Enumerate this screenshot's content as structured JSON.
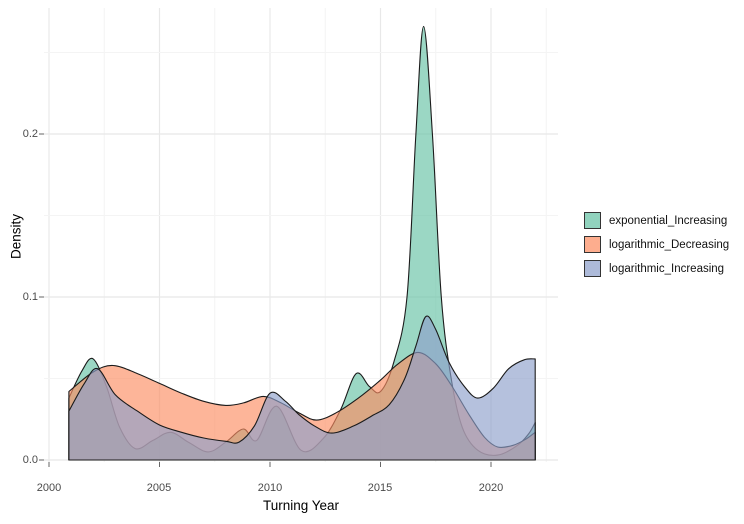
{
  "figure": {
    "background": "#ffffff"
  },
  "chart_data": {
    "type": "area",
    "subtype": "density",
    "title": "",
    "xlabel": "Turning Year",
    "ylabel": "Density",
    "x_ticks": [
      "2000",
      "2005",
      "2010",
      "2015",
      "2020"
    ],
    "y_ticks": [
      "0.0",
      "0.1",
      "0.2"
    ],
    "x_tick_values": [
      2000,
      2005,
      2010,
      2015,
      2020
    ],
    "y_tick_values": [
      0.0,
      0.1,
      0.2
    ],
    "xlim": [
      1999.8,
      2023.1
    ],
    "ylim": [
      0,
      0.28
    ],
    "grid": "major and minor gridlines, light gray on white",
    "legend_position": "right",
    "fill_alpha": 0.65,
    "stroke_color": "#1b1b1b",
    "major_grid_color": "#e8e8e8",
    "minor_grid_color": "#f4f4f4",
    "tick_color": "#666666",
    "series": [
      {
        "name": "exponential_Increasing",
        "color": "#66C2A5",
        "points": [
          [
            2000.9,
            0.038
          ],
          [
            2001.5,
            0.055
          ],
          [
            2002.0,
            0.062
          ],
          [
            2002.6,
            0.045
          ],
          [
            2003.2,
            0.02
          ],
          [
            2003.9,
            0.007
          ],
          [
            2004.7,
            0.012
          ],
          [
            2005.5,
            0.017
          ],
          [
            2006.3,
            0.011
          ],
          [
            2007.2,
            0.005
          ],
          [
            2008.0,
            0.011
          ],
          [
            2008.8,
            0.019
          ],
          [
            2009.4,
            0.012
          ],
          [
            2010.3,
            0.033
          ],
          [
            2011.4,
            0.006
          ],
          [
            2012.4,
            0.013
          ],
          [
            2013.2,
            0.031
          ],
          [
            2013.9,
            0.053
          ],
          [
            2014.5,
            0.045
          ],
          [
            2015.0,
            0.042
          ],
          [
            2015.6,
            0.06
          ],
          [
            2016.2,
            0.1
          ],
          [
            2016.6,
            0.2
          ],
          [
            2016.95,
            0.266
          ],
          [
            2017.35,
            0.2
          ],
          [
            2017.75,
            0.1
          ],
          [
            2018.2,
            0.05
          ],
          [
            2018.7,
            0.02
          ],
          [
            2019.4,
            0.006
          ],
          [
            2020.3,
            0.003
          ],
          [
            2021.2,
            0.009
          ],
          [
            2021.7,
            0.016
          ],
          [
            2022.0,
            0.023
          ]
        ]
      },
      {
        "name": "logarithmic_Decreasing",
        "color": "#FC8D62",
        "points": [
          [
            2000.9,
            0.042
          ],
          [
            2002.0,
            0.054
          ],
          [
            2002.9,
            0.058
          ],
          [
            2004.0,
            0.053
          ],
          [
            2005.0,
            0.047
          ],
          [
            2006.0,
            0.041
          ],
          [
            2007.0,
            0.036
          ],
          [
            2008.0,
            0.0335
          ],
          [
            2008.8,
            0.035
          ],
          [
            2009.7,
            0.039
          ],
          [
            2010.5,
            0.035
          ],
          [
            2011.3,
            0.029
          ],
          [
            2012.1,
            0.0245
          ],
          [
            2013.0,
            0.029
          ],
          [
            2014.0,
            0.038
          ],
          [
            2015.0,
            0.049
          ],
          [
            2015.8,
            0.059
          ],
          [
            2016.7,
            0.066
          ],
          [
            2017.5,
            0.059
          ],
          [
            2018.2,
            0.046
          ],
          [
            2019.0,
            0.028
          ],
          [
            2019.7,
            0.014
          ],
          [
            2020.3,
            0.008
          ],
          [
            2021.0,
            0.009
          ],
          [
            2021.6,
            0.013
          ],
          [
            2022.0,
            0.017
          ]
        ]
      },
      {
        "name": "logarithmic_Increasing",
        "color": "#8DA0CB",
        "points": [
          [
            2000.9,
            0.03
          ],
          [
            2001.6,
            0.047
          ],
          [
            2002.2,
            0.056
          ],
          [
            2003.0,
            0.04
          ],
          [
            2004.0,
            0.03
          ],
          [
            2005.0,
            0.0215
          ],
          [
            2006.0,
            0.017
          ],
          [
            2007.0,
            0.0135
          ],
          [
            2008.0,
            0.0115
          ],
          [
            2008.6,
            0.011
          ],
          [
            2009.3,
            0.021
          ],
          [
            2010.0,
            0.041
          ],
          [
            2010.7,
            0.036
          ],
          [
            2011.3,
            0.028
          ],
          [
            2012.0,
            0.021
          ],
          [
            2012.8,
            0.0165
          ],
          [
            2013.8,
            0.021
          ],
          [
            2014.6,
            0.027
          ],
          [
            2015.4,
            0.034
          ],
          [
            2016.1,
            0.05
          ],
          [
            2016.6,
            0.07
          ],
          [
            2017.05,
            0.088
          ],
          [
            2017.5,
            0.08
          ],
          [
            2018.1,
            0.06
          ],
          [
            2018.8,
            0.045
          ],
          [
            2019.4,
            0.038
          ],
          [
            2020.1,
            0.044
          ],
          [
            2020.8,
            0.056
          ],
          [
            2021.5,
            0.0615
          ],
          [
            2022.0,
            0.062
          ]
        ]
      }
    ]
  },
  "legend": {
    "swatch_alpha": 0.72
  }
}
